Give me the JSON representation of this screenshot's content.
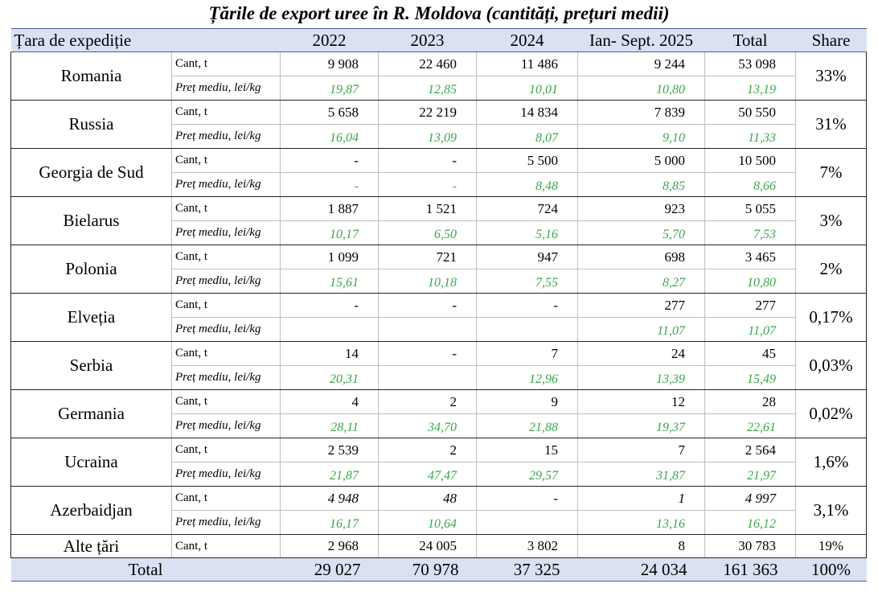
{
  "title": "Țările de export uree în R. Moldova (cantități, prețuri medii)",
  "header": {
    "country": "Țara de expediție",
    "y2022": "2022",
    "y2023": "2023",
    "y2024": "2024",
    "y2025": "Ian- Sept. 2025",
    "total": "Total",
    "share": "Share"
  },
  "labels": {
    "cant": "Cant, t",
    "price": "Preț mediu, lei/kg"
  },
  "rows": [
    {
      "country": "Romania",
      "cant": [
        "9 908",
        "22 460",
        "11 486",
        "9 244",
        "53 098"
      ],
      "price": [
        "19,87",
        "12,85",
        "10,01",
        "10,80",
        "13,19"
      ],
      "share": "33%"
    },
    {
      "country": "Russia",
      "cant": [
        "5 658",
        "22 219",
        "14 834",
        "7 839",
        "50 550"
      ],
      "price": [
        "16,04",
        "13,09",
        "8,07",
        "9,10",
        "11,33"
      ],
      "share": "31%"
    },
    {
      "country": "Georgia de Sud",
      "cant": [
        "-",
        "-",
        "5 500",
        "5 000",
        "10 500"
      ],
      "price": [
        "-",
        "-",
        "8,48",
        "8,85",
        "8,66"
      ],
      "share": "7%"
    },
    {
      "country": "Bielarus",
      "cant": [
        "1 887",
        "1 521",
        "724",
        "923",
        "5 055"
      ],
      "price": [
        "10,17",
        "6,50",
        "5,16",
        "5,70",
        "7,53"
      ],
      "share": "3%"
    },
    {
      "country": "Polonia",
      "cant": [
        "1 099",
        "721",
        "947",
        "698",
        "3 465"
      ],
      "price": [
        "15,61",
        "10,18",
        "7,55",
        "8,27",
        "10,80"
      ],
      "share": "2%"
    },
    {
      "country": "Elveția",
      "cant": [
        "-",
        "-",
        "-",
        "277",
        "277"
      ],
      "price": [
        "",
        "",
        "",
        "11,07",
        "11,07"
      ],
      "share": "0,17%"
    },
    {
      "country": "Serbia",
      "cant": [
        "14",
        "-",
        "7",
        "24",
        "45"
      ],
      "price": [
        "20,31",
        "",
        "12,96",
        "13,39",
        "15,49"
      ],
      "share": "0,03%"
    },
    {
      "country": "Germania",
      "cant": [
        "4",
        "2",
        "9",
        "12",
        "28"
      ],
      "price": [
        "28,11",
        "34,70",
        "21,88",
        "19,37",
        "22,61"
      ],
      "share": "0,02%"
    },
    {
      "country": "Ucraina",
      "cant": [
        "2 539",
        "2",
        "15",
        "7",
        "2 564"
      ],
      "price": [
        "21,87",
        "47,47",
        "29,57",
        "31,87",
        "21,97"
      ],
      "share": "1,6%"
    },
    {
      "country": "Azerbaidjan",
      "cant": [
        "4 948",
        "48",
        "-",
        "1",
        "4 997"
      ],
      "price": [
        "16,17",
        "10,64",
        "",
        "13,16",
        "16,12"
      ],
      "share": "3,1%"
    }
  ],
  "alte": {
    "country": "Alte țări",
    "label": "Cant, t",
    "cant": [
      "2 968",
      "24 005",
      "3 802",
      "8",
      "30 783"
    ],
    "share": "19%"
  },
  "total": {
    "label": "Total",
    "values": [
      "29 027",
      "70 978",
      "37 325",
      "24 034",
      "161 363"
    ],
    "share": "100%"
  }
}
